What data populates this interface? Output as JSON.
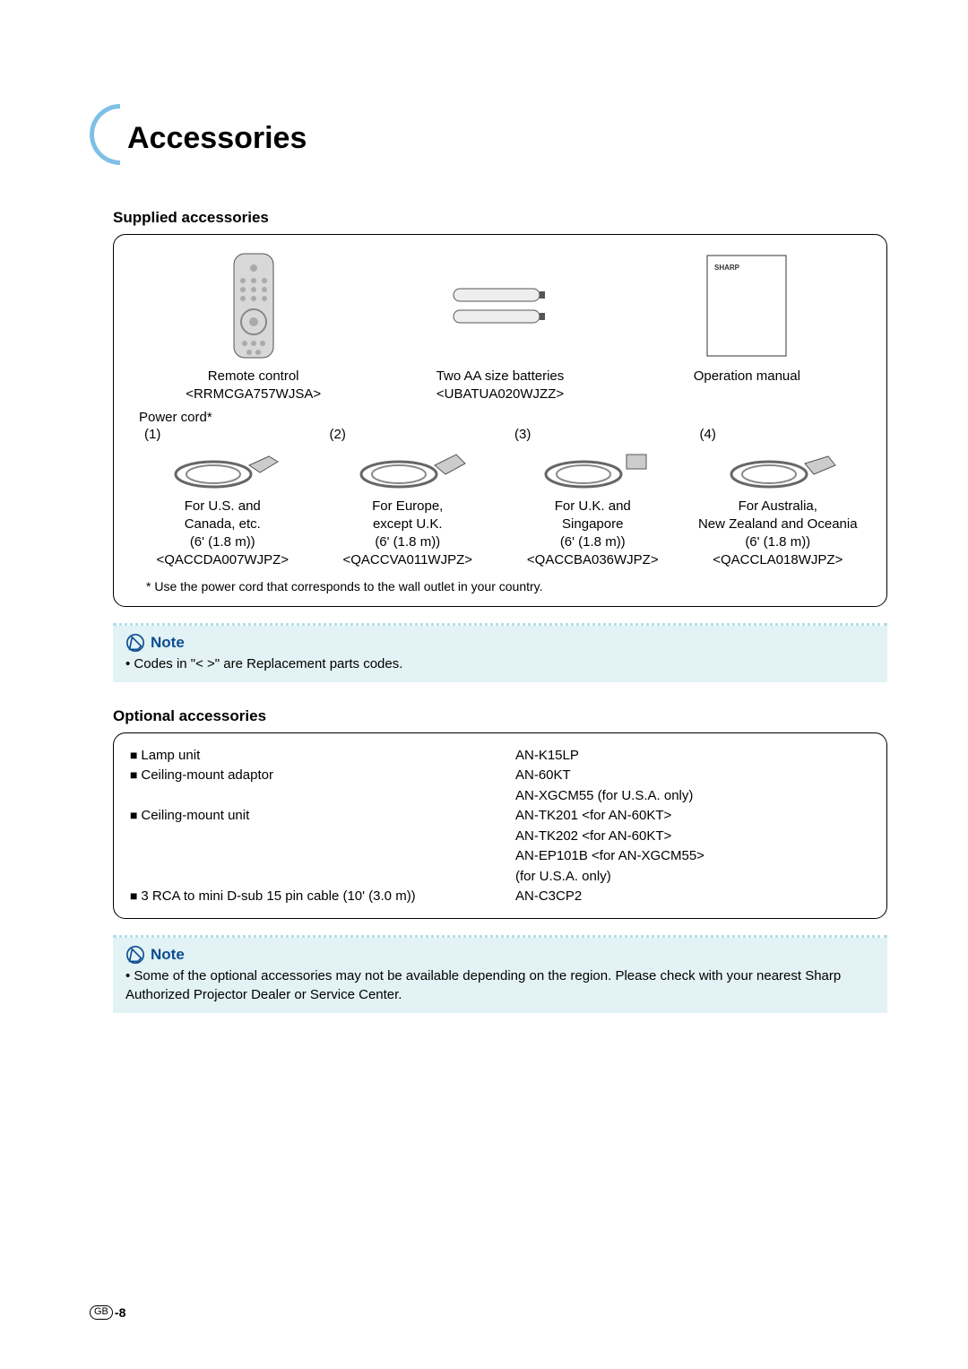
{
  "page": {
    "title": "Accessories",
    "page_number": "-8",
    "gb_label": "GB"
  },
  "colors": {
    "arc": "#7EC0E6",
    "note_bg": "#E3F2F4",
    "note_title": "#0B4F90",
    "dotted": "#b0dfe8"
  },
  "supplied": {
    "heading": "Supplied accessories",
    "items": [
      {
        "name": "Remote control",
        "code": "<RRMCGA757WJSA>"
      },
      {
        "name": "Two AA size batteries",
        "code": "<UBATUA020WJZZ>"
      },
      {
        "name": "Operation manual",
        "code": ""
      }
    ],
    "power_cord_heading": "Power cord*",
    "cords": [
      {
        "num": "(1)",
        "region": "For U.S. and\nCanada, etc.",
        "length": "(6' (1.8 m))",
        "code": "<QACCDA007WJPZ>"
      },
      {
        "num": "(2)",
        "region": "For Europe,\nexcept U.K.",
        "length": "(6' (1.8 m))",
        "code": "<QACCVA011WJPZ>"
      },
      {
        "num": "(3)",
        "region": "For U.K. and\nSingapore",
        "length": "(6' (1.8 m))",
        "code": "<QACCBA036WJPZ>"
      },
      {
        "num": "(4)",
        "region": "For Australia,\nNew Zealand and Oceania",
        "length": "(6' (1.8 m))",
        "code": "<QACCLA018WJPZ>"
      }
    ],
    "footnote": "* Use the power cord that corresponds to the wall outlet in your country."
  },
  "note1": {
    "title": "Note",
    "body": "Codes in \"<  >\" are Replacement parts codes."
  },
  "optional": {
    "heading": "Optional accessories",
    "rows": [
      {
        "left": "Lamp unit",
        "right": "AN-K15LP",
        "sq": true
      },
      {
        "left": "Ceiling-mount adaptor",
        "right": "AN-60KT",
        "sq": true
      },
      {
        "left": "",
        "right": "AN-XGCM55 (for U.S.A. only)",
        "sq": false
      },
      {
        "left": "Ceiling-mount unit",
        "right": "AN-TK201 <for AN-60KT>",
        "sq": true
      },
      {
        "left": "",
        "right": "AN-TK202 <for AN-60KT>",
        "sq": false
      },
      {
        "left": "",
        "right": "AN-EP101B <for AN-XGCM55>",
        "sq": false
      },
      {
        "left": "",
        "right": "(for U.S.A. only)",
        "sq": false
      },
      {
        "left": "3 RCA to mini D-sub 15 pin cable (10' (3.0 m))",
        "right": "AN-C3CP2",
        "sq": true
      }
    ]
  },
  "note2": {
    "title": "Note",
    "body": "Some of the optional accessories may not be available depending on the region. Please check with your nearest Sharp Authorized Projector Dealer or Service Center."
  }
}
